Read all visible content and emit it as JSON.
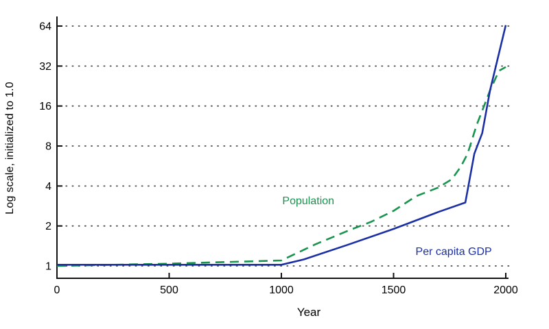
{
  "chart_data": {
    "type": "line",
    "title": "",
    "xlabel": "Year",
    "ylabel": "Log scale, initialized to 1.0",
    "x_ticks": [
      0,
      500,
      1000,
      1500,
      2000
    ],
    "y_ticks": [
      1,
      2,
      4,
      8,
      16,
      32,
      64
    ],
    "y_scale": "log2",
    "xlim": [
      0,
      2000
    ],
    "ylim": [
      1,
      64
    ],
    "grid": "dotted horizontal gridlines at each power of 2",
    "legend_position": "inline text annotations on plot",
    "colors": {
      "population": "#18944e",
      "per_capita_gdp": "#1b2fa5",
      "axis": "#111111",
      "grid_dots": "#4a4a4a",
      "background": "#ffffff"
    },
    "series": [
      {
        "name": "Population",
        "color": "#18944e",
        "style": "dashed",
        "label_anchor": {
          "year": 1120,
          "value": 3.05
        },
        "points": [
          [
            0,
            1.0
          ],
          [
            250,
            1.02
          ],
          [
            500,
            1.04
          ],
          [
            750,
            1.07
          ],
          [
            1000,
            1.1
          ],
          [
            1150,
            1.45
          ],
          [
            1300,
            1.85
          ],
          [
            1400,
            2.15
          ],
          [
            1500,
            2.6
          ],
          [
            1600,
            3.35
          ],
          [
            1700,
            3.9
          ],
          [
            1760,
            4.5
          ],
          [
            1800,
            5.6
          ],
          [
            1830,
            7.0
          ],
          [
            1870,
            11.5
          ],
          [
            1900,
            15.5
          ],
          [
            1930,
            21.0
          ],
          [
            1970,
            29.5
          ],
          [
            2000,
            31.5
          ]
        ]
      },
      {
        "name": "Per capita GDP",
        "color": "#1b2fa5",
        "style": "solid",
        "label_anchor": {
          "year": 1768,
          "value": 1.27
        },
        "points": [
          [
            0,
            1.02
          ],
          [
            1000,
            1.02
          ],
          [
            1100,
            1.12
          ],
          [
            1300,
            1.45
          ],
          [
            1500,
            1.9
          ],
          [
            1700,
            2.55
          ],
          [
            1820,
            3.0
          ],
          [
            1860,
            7.0
          ],
          [
            1895,
            10.0
          ],
          [
            1930,
            21.0
          ],
          [
            2000,
            65.0
          ]
        ]
      }
    ]
  }
}
